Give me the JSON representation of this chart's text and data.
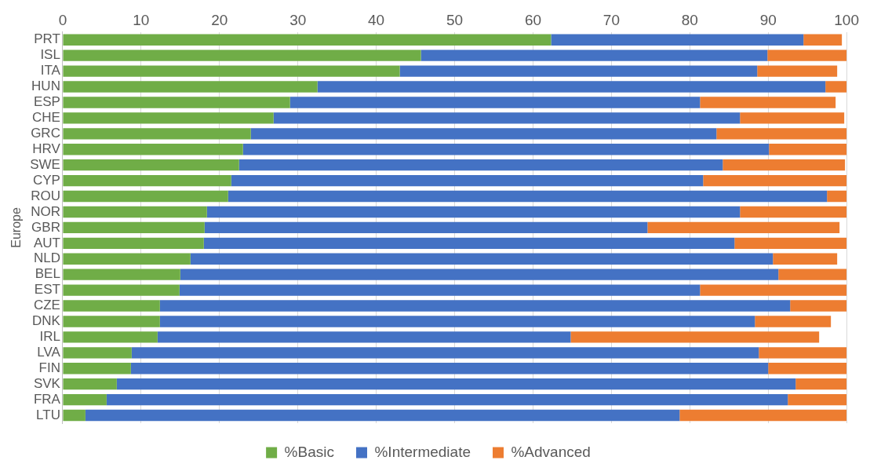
{
  "chart_data": {
    "type": "bar",
    "orientation": "horizontal",
    "stacked": true,
    "ylabel": "Europe",
    "categories": [
      "PRT",
      "ISL",
      "ITA",
      "HUN",
      "ESP",
      "CHE",
      "GRC",
      "HRV",
      "SWE",
      "CYP",
      "ROU",
      "NOR",
      "GBR",
      "AUT",
      "NLD",
      "BEL",
      "EST",
      "CZE",
      "DNK",
      "IRL",
      "LVA",
      "FIN",
      "SVK",
      "FRA",
      "LTU"
    ],
    "series": [
      {
        "name": "%Basic",
        "color": "#70ad47",
        "values": [
          62.3,
          45.7,
          43.0,
          32.5,
          29.0,
          26.9,
          24.0,
          23.0,
          22.5,
          21.5,
          21.1,
          18.4,
          18.1,
          18.0,
          16.3,
          15.0,
          14.9,
          12.4,
          12.4,
          12.1,
          8.8,
          8.7,
          6.9,
          5.6,
          2.9
        ]
      },
      {
        "name": "%Intermediate",
        "color": "#4472c4",
        "values": [
          32.2,
          44.2,
          45.6,
          64.8,
          52.3,
          59.5,
          59.4,
          67.1,
          61.7,
          60.2,
          76.4,
          68.0,
          56.5,
          67.7,
          74.3,
          76.3,
          66.4,
          80.4,
          75.9,
          52.7,
          80.0,
          81.3,
          86.6,
          86.9,
          75.8
        ]
      },
      {
        "name": "%Advanced",
        "color": "#ed7d31",
        "values": [
          4.9,
          10.1,
          10.2,
          2.7,
          17.3,
          13.3,
          16.6,
          9.9,
          15.6,
          18.3,
          2.5,
          13.6,
          24.5,
          14.3,
          8.2,
          8.7,
          18.7,
          7.2,
          9.7,
          31.7,
          11.2,
          10.0,
          6.5,
          7.5,
          21.3
        ]
      }
    ],
    "xlim": [
      0,
      100
    ],
    "xticks": [
      0,
      10,
      20,
      30,
      40,
      50,
      60,
      70,
      80,
      90,
      100
    ],
    "grid": "x",
    "legend": "bottom"
  }
}
